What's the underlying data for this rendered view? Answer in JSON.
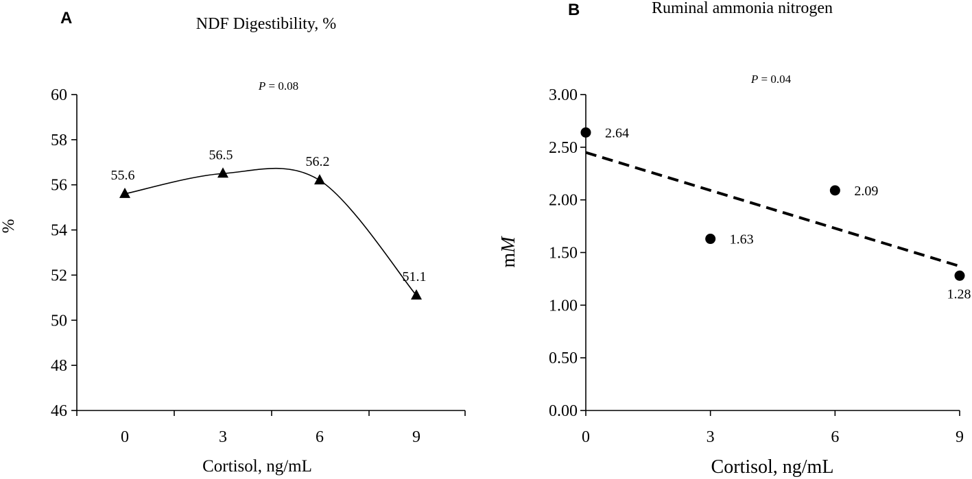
{
  "chart_data": [
    {
      "type": "line",
      "panel": "A",
      "title": "NDF Digestibility, %",
      "annotation": {
        "italic": "P",
        "text": " = 0.08"
      },
      "xlabel": "Cortisol, ng/mL",
      "ylabel": "%",
      "x": [
        0,
        3,
        6,
        9
      ],
      "xticks": [
        "0",
        "3",
        "6",
        "9"
      ],
      "values": [
        55.6,
        56.5,
        56.2,
        51.1
      ],
      "data_labels": [
        "55.6",
        "56.5",
        "56.2",
        "51.1"
      ],
      "ylim": [
        46,
        60
      ],
      "yticks": [
        "46",
        "48",
        "50",
        "52",
        "54",
        "56",
        "58",
        "60"
      ],
      "marker": "triangle",
      "fit": "smooth curve"
    },
    {
      "type": "scatter",
      "panel": "B",
      "title": "Ruminal ammonia nitrogen",
      "annotation": {
        "italic": "P",
        "text": " = 0.04"
      },
      "xlabel": "Cortisol, ng/mL",
      "ylabel": {
        "normal": "m",
        "italic": "M"
      },
      "x": [
        0,
        3,
        6,
        9
      ],
      "xticks": [
        "0",
        "3",
        "6",
        "9"
      ],
      "values": [
        2.64,
        1.63,
        2.09,
        1.28
      ],
      "data_labels": [
        "2.64",
        "1.63",
        "2.09",
        "1.28"
      ],
      "ylim": [
        0,
        3
      ],
      "yticks": [
        "0.00",
        "0.50",
        "1.00",
        "1.50",
        "2.00",
        "2.50",
        "3.00"
      ],
      "marker": "circle",
      "trendline": {
        "style": "dashed",
        "y_at_x0": 2.45,
        "y_at_x9": 1.37
      }
    }
  ]
}
